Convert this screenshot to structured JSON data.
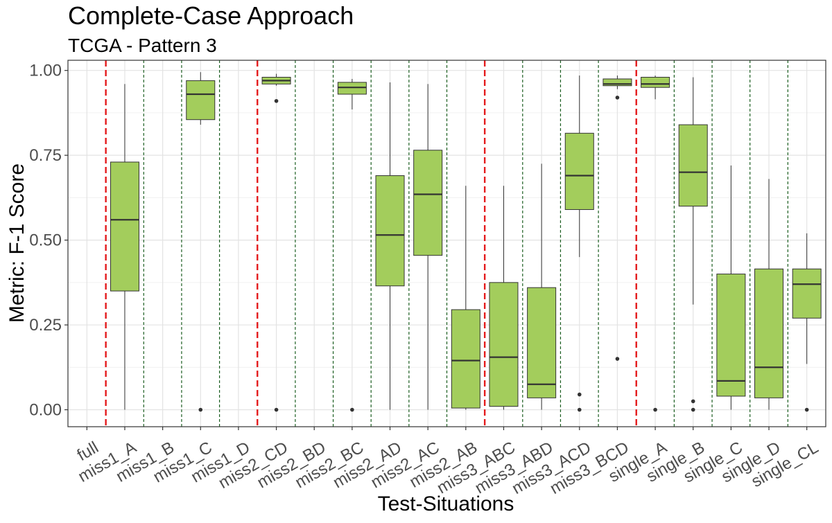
{
  "chart_data": {
    "type": "boxplot",
    "title": "Complete-Case Approach",
    "subtitle": "TCGA - Pattern 3",
    "xlabel": "Test-Situations",
    "ylabel": "Metric: F-1 Score",
    "ylim": [
      -0.05,
      1.03
    ],
    "yticks": [
      "0.00",
      "0.25",
      "0.50",
      "0.75",
      "1.00"
    ],
    "ytick_values": [
      0,
      0.25,
      0.5,
      0.75,
      1.0
    ],
    "grid": true,
    "box_color": "#a3cd5c",
    "categories": [
      "full",
      "miss1_A",
      "miss1_B",
      "miss1_C",
      "miss1_D",
      "miss2_CD",
      "miss2_BD",
      "miss2_BC",
      "miss2_AD",
      "miss2_AC",
      "miss2_AB",
      "miss3_ABC",
      "miss3_ABD",
      "miss3_ACD",
      "miss3_BCD",
      "single_A",
      "single_B",
      "single_C",
      "single_D",
      "single_CL"
    ],
    "boxes": [
      null,
      {
        "min": 0.0,
        "q1": 0.35,
        "median": 0.56,
        "q3": 0.73,
        "max": 0.96,
        "outliers": []
      },
      null,
      {
        "min": 0.84,
        "q1": 0.855,
        "median": 0.93,
        "q3": 0.97,
        "max": 0.995,
        "outliers": [
          0.0
        ]
      },
      null,
      {
        "min": 0.955,
        "q1": 0.96,
        "median": 0.97,
        "q3": 0.98,
        "max": 0.99,
        "outliers": [
          0.91,
          0.0
        ]
      },
      null,
      {
        "min": 0.885,
        "q1": 0.93,
        "median": 0.95,
        "q3": 0.965,
        "max": 0.975,
        "outliers": [
          0.0
        ]
      },
      {
        "min": 0.0,
        "q1": 0.365,
        "median": 0.515,
        "q3": 0.69,
        "max": 0.965,
        "outliers": []
      },
      {
        "min": 0.0,
        "q1": 0.455,
        "median": 0.635,
        "q3": 0.765,
        "max": 0.96,
        "outliers": []
      },
      {
        "min": 0.0,
        "q1": 0.005,
        "median": 0.145,
        "q3": 0.295,
        "max": 0.66,
        "outliers": []
      },
      {
        "min": 0.0,
        "q1": 0.01,
        "median": 0.155,
        "q3": 0.375,
        "max": 0.66,
        "outliers": []
      },
      {
        "min": 0.0,
        "q1": 0.035,
        "median": 0.075,
        "q3": 0.36,
        "max": 0.725,
        "outliers": []
      },
      {
        "min": 0.45,
        "q1": 0.59,
        "median": 0.69,
        "q3": 0.815,
        "max": 0.985,
        "outliers": [
          0.045,
          0.0
        ]
      },
      {
        "min": 0.945,
        "q1": 0.955,
        "median": 0.96,
        "q3": 0.975,
        "max": 0.985,
        "outliers": [
          0.92,
          0.15
        ]
      },
      {
        "min": 0.915,
        "q1": 0.95,
        "median": 0.96,
        "q3": 0.98,
        "max": 0.985,
        "outliers": [
          0.0
        ]
      },
      {
        "min": 0.31,
        "q1": 0.6,
        "median": 0.7,
        "q3": 0.84,
        "max": 0.98,
        "outliers": [
          0.025,
          0.0
        ]
      },
      {
        "min": 0.0,
        "q1": 0.04,
        "median": 0.085,
        "q3": 0.4,
        "max": 0.72,
        "outliers": []
      },
      {
        "min": 0.0,
        "q1": 0.035,
        "median": 0.125,
        "q3": 0.415,
        "max": 0.68,
        "outliers": []
      },
      {
        "min": 0.135,
        "q1": 0.27,
        "median": 0.37,
        "q3": 0.415,
        "max": 0.52,
        "outliers": [
          0.0
        ]
      }
    ],
    "separators": {
      "red_dashed_after": [
        "full",
        "miss1_D",
        "miss2_AB",
        "miss3_BCD"
      ],
      "green_dashed_after": [
        "miss1_A",
        "miss1_B",
        "miss1_C",
        "miss2_CD",
        "miss2_BD",
        "miss2_BC",
        "miss2_AD",
        "miss2_AC",
        "miss3_ABC",
        "miss3_ABD",
        "miss3_ACD",
        "single_A",
        "single_B",
        "single_C",
        "single_D"
      ],
      "red_color": "#e41a1c",
      "green_color": "#1b5e20"
    }
  }
}
